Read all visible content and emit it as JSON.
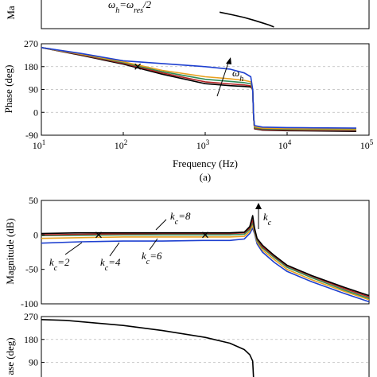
{
  "panel_a_caption": "(a)",
  "annotations": {
    "top_formula": "ω_h=ω_res/2",
    "phase_a_omega": "ω_h",
    "mag_b_k8": "k_c=8",
    "mag_b_k2": "k_c=2",
    "mag_b_k4": "k_c=4",
    "mag_b_k6": "k_c=6",
    "mag_b_kc": "k_c"
  },
  "chart_data": [
    {
      "id": "a_magnitude",
      "type": "line",
      "ylabel": "Ma",
      "series": [
        {
          "color": "#000000",
          "x": [
            1500,
            2200,
            3000,
            4000,
            5000,
            6000,
            6900
          ],
          "y": [
            -20,
            -27,
            -33,
            -40,
            -46,
            -51,
            -56
          ]
        }
      ]
    },
    {
      "id": "a_phase",
      "type": "line",
      "xscale": "log",
      "xlim": [
        10,
        100000
      ],
      "ylim": [
        -90,
        270
      ],
      "yticks": [
        -90,
        0,
        90,
        180,
        270
      ],
      "xtick_labels": [
        "10^1",
        "10^2",
        "10^3",
        "10^4",
        "10^5"
      ],
      "xlabel": "Frequency (Hz)",
      "ylabel": "Phase (deg)",
      "grid": true,
      "series": [
        {
          "color": "#000000",
          "x": [
            10,
            30,
            100,
            300,
            1000,
            2000,
            3000,
            3600,
            3800,
            3900,
            4000,
            5000,
            10000,
            20000,
            70000
          ],
          "y": [
            255,
            225,
            190,
            150,
            113,
            105,
            102,
            100,
            90,
            -20,
            -65,
            -70,
            -72,
            -73,
            -75
          ]
        },
        {
          "color": "#b22222",
          "x": [
            10,
            30,
            100,
            300,
            1000,
            2000,
            3000,
            3600,
            3800,
            3900,
            4000,
            5000,
            10000,
            20000,
            70000
          ],
          "y": [
            255,
            227,
            193,
            155,
            120,
            112,
            108,
            104,
            90,
            -20,
            -63,
            -68,
            -70,
            -71,
            -72
          ]
        },
        {
          "color": "#2e8b57",
          "x": [
            10,
            30,
            100,
            300,
            1000,
            2000,
            3000,
            3600,
            3800,
            3900,
            4000,
            5000,
            10000,
            20000,
            70000
          ],
          "y": [
            255,
            229,
            196,
            160,
            130,
            122,
            117,
            112,
            90,
            -20,
            -60,
            -65,
            -67,
            -68,
            -69
          ]
        },
        {
          "color": "#e8a020",
          "x": [
            10,
            30,
            100,
            300,
            1000,
            2000,
            3000,
            3600,
            3800,
            3900,
            4000,
            5000,
            10000,
            20000,
            70000
          ],
          "y": [
            255,
            230,
            199,
            165,
            140,
            132,
            126,
            120,
            90,
            -20,
            -57,
            -62,
            -64,
            -65,
            -66
          ]
        },
        {
          "color": "#1e40d0",
          "x": [
            10,
            30,
            100,
            300,
            1000,
            2000,
            3000,
            3600,
            3800,
            3900,
            4000,
            5000,
            10000,
            20000,
            70000
          ],
          "y": [
            255,
            232,
            203,
            192,
            180,
            170,
            155,
            140,
            90,
            -20,
            -52,
            -58,
            -60,
            -61,
            -62
          ]
        }
      ],
      "markers": [
        {
          "x": 150,
          "y": 180,
          "symbol": "x"
        }
      ]
    },
    {
      "id": "b_magnitude",
      "type": "line",
      "xscale": "log",
      "xlim": [
        10,
        100000
      ],
      "ylim": [
        -100,
        50
      ],
      "yticks": [
        -100,
        -50,
        0,
        50
      ],
      "ylabel": "Magnitude (dB)",
      "series": [
        {
          "name": "k_c=2",
          "color": "#1e40d0",
          "x": [
            10,
            30,
            100,
            300,
            1000,
            2000,
            3000,
            3500,
            3800,
            4000,
            4300,
            5000,
            7000,
            10000,
            20000,
            50000,
            100000
          ],
          "y": [
            -12,
            -10,
            -9,
            -9,
            -8,
            -8,
            -6,
            2,
            10,
            2,
            -13,
            -25,
            -40,
            -53,
            -68,
            -85,
            -97
          ]
        },
        {
          "name": "k_c=4",
          "color": "#e8a020",
          "x": [
            10,
            30,
            100,
            300,
            1000,
            2000,
            3000,
            3500,
            3800,
            4000,
            4300,
            5000,
            7000,
            10000,
            20000,
            50000,
            100000
          ],
          "y": [
            -5,
            -4,
            -3,
            -3,
            -3,
            -3,
            -2,
            5,
            14,
            4,
            -10,
            -22,
            -36,
            -50,
            -65,
            -82,
            -94
          ]
        },
        {
          "name": "k_c=6",
          "color": "#2e8b57",
          "x": [
            10,
            30,
            100,
            300,
            1000,
            2000,
            3000,
            3500,
            3800,
            4000,
            4300,
            5000,
            7000,
            10000,
            20000,
            50000,
            100000
          ],
          "y": [
            -1,
            -0.5,
            0,
            0,
            0,
            0,
            1,
            8,
            18,
            6,
            -8,
            -19,
            -33,
            -47,
            -62,
            -80,
            -92
          ]
        },
        {
          "name": "k_c=8",
          "color": "#b22222",
          "x": [
            10,
            30,
            100,
            300,
            1000,
            2000,
            3000,
            3500,
            3800,
            4000,
            4300,
            5000,
            7000,
            10000,
            20000,
            50000,
            100000
          ],
          "y": [
            0,
            1,
            1.5,
            2,
            2,
            2,
            3,
            10,
            22,
            8,
            -6,
            -17,
            -31,
            -45,
            -60,
            -78,
            -90
          ]
        },
        {
          "color": "#000000",
          "x": [
            10,
            30,
            100,
            300,
            1000,
            2000,
            3000,
            3500,
            3800,
            4000,
            4300,
            5000,
            7000,
            10000,
            20000,
            50000,
            100000
          ],
          "y": [
            2,
            3,
            3,
            3,
            3,
            3,
            4,
            12,
            28,
            10,
            -5,
            -15,
            -30,
            -44,
            -59,
            -76,
            -88
          ]
        }
      ],
      "markers": [
        {
          "x": 50,
          "y": 0,
          "symbol": "x"
        },
        {
          "x": 1000,
          "y": 0,
          "symbol": "x"
        }
      ]
    },
    {
      "id": "b_phase",
      "type": "line",
      "xscale": "log",
      "xlim": [
        10,
        100000
      ],
      "ylim": [
        -90,
        270
      ],
      "yticks": [
        90,
        180,
        270
      ],
      "ylabel": "ase (deg)",
      "grid": true,
      "series": [
        {
          "color": "#000000",
          "x": [
            10,
            20,
            100,
            300,
            1000,
            2000,
            3000,
            3500,
            3800,
            3900
          ],
          "y": [
            258,
            255,
            235,
            215,
            188,
            165,
            140,
            120,
            95,
            20
          ]
        }
      ]
    }
  ]
}
